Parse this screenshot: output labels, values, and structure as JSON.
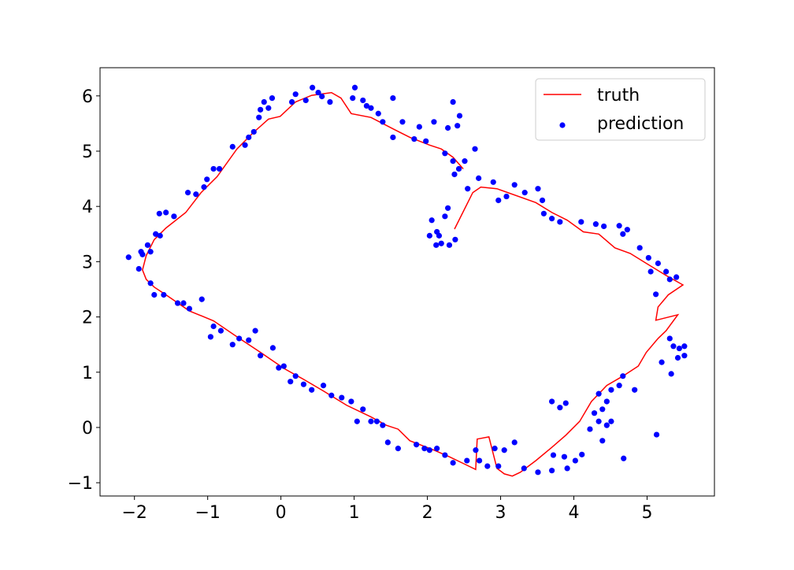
{
  "chart_data": {
    "type": "line-scatter",
    "xlim": [
      -2.47,
      5.92
    ],
    "ylim": [
      -1.24,
      6.51
    ],
    "xticks": [
      {
        "value": -2,
        "label": "−2"
      },
      {
        "value": -1,
        "label": "−1"
      },
      0,
      1,
      2,
      3,
      4,
      5
    ],
    "yticks": [
      {
        "value": -1,
        "label": "−1"
      },
      0,
      1,
      2,
      3,
      4,
      5,
      6
    ],
    "legend": "upper right",
    "series": [
      {
        "name": "truth",
        "kind": "line",
        "color": "#ff0000",
        "x": [
          2.37,
          2.62,
          2.73,
          2.95,
          3.48,
          3.7,
          3.91,
          4.13,
          4.34,
          4.56,
          4.77,
          4.99,
          5.26,
          5.49,
          5.29,
          5.15,
          5.12,
          5.42,
          5.26,
          5.15,
          4.99,
          4.88,
          4.67,
          4.45,
          4.24,
          4.08,
          3.89,
          3.7,
          3.48,
          3.27,
          3.16,
          3.05,
          2.95,
          2.84,
          2.68,
          2.66,
          2.52,
          2.3,
          2.09,
          1.76,
          1.6,
          1.44,
          1.23,
          0.9,
          0.58,
          0.31,
          0.04,
          -0.28,
          -0.6,
          -0.92,
          -1.25,
          -1.57,
          -1.73,
          -1.84,
          -1.89,
          -1.84,
          -1.73,
          -1.57,
          -1.3,
          -1.09,
          -0.87,
          -0.6,
          -0.39,
          -0.17,
          -0.01,
          0.2,
          0.42,
          0.69,
          0.82,
          0.96,
          1.23,
          1.55,
          1.76,
          2.03,
          2.19,
          2.35,
          2.49
        ],
        "values": [
          3.59,
          4.25,
          4.35,
          4.32,
          4.07,
          3.89,
          3.75,
          3.54,
          3.5,
          3.25,
          3.15,
          2.97,
          2.75,
          2.58,
          2.4,
          2.18,
          1.94,
          2.04,
          1.75,
          1.61,
          1.36,
          1.11,
          0.93,
          0.76,
          0.47,
          0.11,
          -0.14,
          -0.36,
          -0.6,
          -0.81,
          -0.88,
          -0.84,
          -0.74,
          -0.17,
          -0.21,
          -0.76,
          -0.67,
          -0.53,
          -0.41,
          -0.24,
          -0.03,
          0.04,
          0.19,
          0.4,
          0.66,
          0.87,
          1.07,
          1.36,
          1.64,
          1.93,
          2.11,
          2.4,
          2.54,
          2.68,
          2.85,
          3.11,
          3.4,
          3.61,
          3.89,
          4.25,
          4.54,
          5.04,
          5.32,
          5.58,
          5.63,
          5.89,
          6.01,
          6.06,
          5.96,
          5.68,
          5.61,
          5.39,
          5.25,
          5.11,
          5.04,
          4.89,
          4.68
        ]
      },
      {
        "name": "prediction",
        "kind": "scatter",
        "color": "#0000ff",
        "x": [
          -2.08,
          -1.91,
          -1.89,
          -1.82,
          -1.78,
          -1.71,
          -1.65,
          -1.66,
          -1.57,
          -1.46,
          -1.27,
          -1.16,
          -1.05,
          -1.01,
          -0.92,
          -0.84,
          -0.66,
          -0.49,
          -0.44,
          -0.37,
          -0.3,
          -0.28,
          -0.23,
          -0.17,
          -0.12,
          0.15,
          0.2,
          0.34,
          0.43,
          0.51,
          0.56,
          0.67,
          1.01,
          0.98,
          1.12,
          1.17,
          1.23,
          1.33,
          1.39,
          1.53,
          1.53,
          1.66,
          1.82,
          1.89,
          1.98,
          2.09,
          2.35,
          2.28,
          2.41,
          2.44,
          2.24,
          2.35,
          2.43,
          2.51,
          2.37,
          2.65,
          2.03,
          2.06,
          2.13,
          2.12,
          2.19,
          2.16,
          2.28,
          2.24,
          2.3,
          2.38,
          2.55,
          2.7,
          2.9,
          2.97,
          3.08,
          3.19,
          3.33,
          3.51,
          3.57,
          3.59,
          3.7,
          3.81,
          4.1,
          4.3,
          4.41,
          4.62,
          4.67,
          4.73,
          4.9,
          5.02,
          5.05,
          5.15,
          5.26,
          5.31,
          5.4,
          5.12,
          5.31,
          5.36,
          5.44,
          5.51,
          5.42,
          5.2,
          5.33,
          5.51,
          4.67,
          4.83,
          4.62,
          4.51,
          4.45,
          4.34,
          4.28,
          4.39,
          4.45,
          4.51,
          4.34,
          4.22,
          4.39,
          4.68,
          5.13,
          3.7,
          3.81,
          3.89,
          4.11,
          4.02,
          3.91,
          3.72,
          3.87,
          3.7,
          3.51,
          3.32,
          3.19,
          3.05,
          2.92,
          2.97,
          2.82,
          2.66,
          2.71,
          2.54,
          2.35,
          2.24,
          2.13,
          2.03,
          1.96,
          1.85,
          1.6,
          1.46,
          1.39,
          1.31,
          1.23,
          1.12,
          1.04,
          0.96,
          0.83,
          0.69,
          0.58,
          0.42,
          0.31,
          0.2,
          0.13,
          0.04,
          -0.03,
          -0.11,
          -0.28,
          -0.35,
          -0.44,
          -0.57,
          -0.66,
          -0.82,
          -0.92,
          -0.96,
          -1.08,
          -1.25,
          -1.33,
          -1.41,
          -1.6,
          -1.73,
          -1.78,
          -1.94
        ],
        "values": [
          3.08,
          3.18,
          3.13,
          3.3,
          3.18,
          3.5,
          3.47,
          3.87,
          3.89,
          3.82,
          4.25,
          4.22,
          4.35,
          4.49,
          4.68,
          4.68,
          5.08,
          5.11,
          5.25,
          5.35,
          5.61,
          5.75,
          5.89,
          5.78,
          5.96,
          5.89,
          6.03,
          5.92,
          6.15,
          6.06,
          5.99,
          5.89,
          6.15,
          5.96,
          5.92,
          5.82,
          5.78,
          5.68,
          5.53,
          5.96,
          5.25,
          5.53,
          5.22,
          5.44,
          5.18,
          5.53,
          5.89,
          5.42,
          5.46,
          5.64,
          4.96,
          4.82,
          4.68,
          4.82,
          4.58,
          5.04,
          3.47,
          3.75,
          3.54,
          3.3,
          3.33,
          3.47,
          3.97,
          3.82,
          3.3,
          3.4,
          4.32,
          4.51,
          4.44,
          4.11,
          4.18,
          4.39,
          4.25,
          4.32,
          4.11,
          3.87,
          3.78,
          3.72,
          3.72,
          3.68,
          3.64,
          3.65,
          3.5,
          3.58,
          3.25,
          3.07,
          2.82,
          2.97,
          2.82,
          2.68,
          2.72,
          2.41,
          1.61,
          1.47,
          1.43,
          1.47,
          1.26,
          1.18,
          0.97,
          1.3,
          0.93,
          0.68,
          0.76,
          0.68,
          0.47,
          0.61,
          0.26,
          0.33,
          0.04,
          0.11,
          0.11,
          -0.03,
          -0.24,
          -0.56,
          -0.13,
          0.47,
          0.36,
          0.44,
          -0.49,
          -0.6,
          -0.74,
          -0.5,
          -0.53,
          -0.78,
          -0.81,
          -0.74,
          -0.27,
          -0.41,
          -0.38,
          -0.7,
          -0.7,
          -0.41,
          -0.6,
          -0.6,
          -0.64,
          -0.5,
          -0.38,
          -0.41,
          -0.38,
          -0.31,
          -0.38,
          -0.27,
          0.04,
          0.11,
          0.11,
          0.33,
          0.11,
          0.47,
          0.54,
          0.58,
          0.76,
          0.68,
          0.78,
          0.93,
          0.83,
          1.11,
          1.08,
          1.44,
          1.3,
          1.75,
          1.58,
          1.61,
          1.5,
          1.75,
          1.83,
          1.64,
          2.32,
          2.15,
          2.25,
          2.25,
          2.4,
          2.4,
          2.61,
          2.87
        ]
      }
    ]
  }
}
